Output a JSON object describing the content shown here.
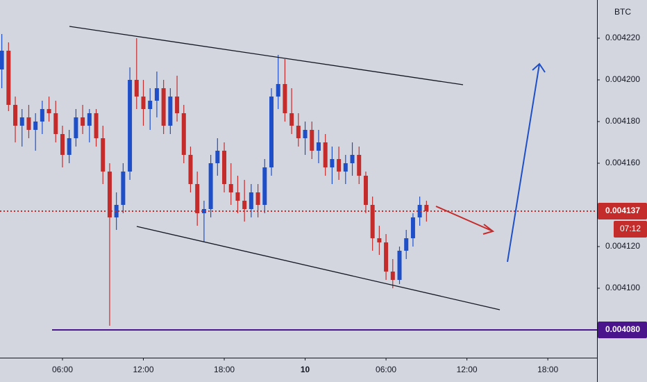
{
  "chart_data": {
    "type": "candlestick",
    "currency": "BTC",
    "up_color": "#1e4fc8",
    "down_color": "#c42b2b",
    "x": [
      1.5,
      2,
      2.5,
      3,
      3.5,
      4,
      4.5,
      5,
      5.5,
      6,
      6.5,
      7,
      7.5,
      8,
      8.5,
      9,
      9.5,
      10,
      10.5,
      11,
      11.5,
      12,
      12.5,
      13,
      13.5,
      14,
      14.5,
      15,
      15.5,
      16,
      16.5,
      17,
      17.5,
      18,
      18.5,
      19,
      19.5,
      20,
      20.5,
      21,
      21.5,
      22,
      22.5,
      23,
      23.5,
      24,
      24.5,
      25,
      25.5,
      26,
      26.5,
      27,
      27.5,
      28,
      28.5,
      29,
      29.5,
      30,
      30.5,
      31,
      31.5,
      32,
      32.5,
      33
    ],
    "open": [
      0.004205,
      0.004214,
      0.004188,
      0.004178,
      0.004182,
      0.004176,
      0.00418,
      0.004186,
      0.004184,
      0.004174,
      0.004164,
      0.004172,
      0.004182,
      0.004178,
      0.004184,
      0.004172,
      0.004156,
      0.004134,
      0.00414,
      0.004156,
      0.0042,
      0.004192,
      0.004186,
      0.00419,
      0.004196,
      0.004178,
      0.004192,
      0.004184,
      0.004164,
      0.00415,
      0.004136,
      0.004138,
      0.00416,
      0.004166,
      0.00415,
      0.004146,
      0.004142,
      0.004138,
      0.004146,
      0.00414,
      0.004158,
      0.004192,
      0.004198,
      0.004184,
      0.004178,
      0.004172,
      0.004176,
      0.004166,
      0.00417,
      0.004158,
      0.004162,
      0.004156,
      0.00416,
      0.004164,
      0.004154,
      0.00414,
      0.004124,
      0.004122,
      0.004108,
      0.004104,
      0.004118,
      0.004124,
      0.004134,
      0.00414
    ],
    "high": [
      0.004222,
      0.004218,
      0.004192,
      0.004186,
      0.004188,
      0.004184,
      0.00419,
      0.004192,
      0.00419,
      0.004178,
      0.004176,
      0.004186,
      0.004188,
      0.004186,
      0.004186,
      0.004178,
      0.00416,
      0.004146,
      0.00416,
      0.004206,
      0.00422,
      0.0042,
      0.004196,
      0.004204,
      0.0042,
      0.004196,
      0.004202,
      0.004188,
      0.004168,
      0.004156,
      0.004142,
      0.004164,
      0.004172,
      0.00417,
      0.00416,
      0.004154,
      0.004152,
      0.00415,
      0.00415,
      0.004162,
      0.004196,
      0.004212,
      0.00421,
      0.004196,
      0.004184,
      0.00418,
      0.00418,
      0.004176,
      0.004174,
      0.004168,
      0.004168,
      0.004164,
      0.00417,
      0.004168,
      0.004156,
      0.004144,
      0.00413,
      0.004126,
      0.004114,
      0.00412,
      0.004128,
      0.004136,
      0.004144,
      0.004142
    ],
    "low": [
      0.004196,
      0.004185,
      0.00417,
      0.004168,
      0.004172,
      0.004166,
      0.004174,
      0.00418,
      0.00417,
      0.004158,
      0.00416,
      0.004168,
      0.004174,
      0.00417,
      0.004168,
      0.00415,
      0.004082,
      0.004128,
      0.004136,
      0.004152,
      0.004186,
      0.004178,
      0.004176,
      0.004182,
      0.004174,
      0.004174,
      0.00418,
      0.00416,
      0.004146,
      0.00413,
      0.004122,
      0.004134,
      0.004154,
      0.004146,
      0.00414,
      0.004136,
      0.004132,
      0.004134,
      0.004134,
      0.004136,
      0.004154,
      0.004186,
      0.00418,
      0.004174,
      0.004168,
      0.004164,
      0.004162,
      0.00416,
      0.004154,
      0.00415,
      0.004152,
      0.00415,
      0.004154,
      0.00415,
      0.004136,
      0.004118,
      0.004116,
      0.004104,
      0.0041,
      0.004102,
      0.004114,
      0.00412,
      0.00413,
      0.004132
    ],
    "close": [
      0.004214,
      0.004188,
      0.004178,
      0.004182,
      0.004176,
      0.00418,
      0.004186,
      0.004184,
      0.004174,
      0.004164,
      0.004172,
      0.004182,
      0.004178,
      0.004184,
      0.004172,
      0.004156,
      0.004134,
      0.00414,
      0.004156,
      0.0042,
      0.004192,
      0.004186,
      0.00419,
      0.004196,
      0.004178,
      0.004192,
      0.004184,
      0.004164,
      0.00415,
      0.004136,
      0.004138,
      0.00416,
      0.004166,
      0.00415,
      0.004146,
      0.004142,
      0.004138,
      0.004146,
      0.00414,
      0.004158,
      0.004192,
      0.004198,
      0.004184,
      0.004178,
      0.004172,
      0.004176,
      0.004166,
      0.00417,
      0.004158,
      0.004162,
      0.004156,
      0.00416,
      0.004164,
      0.004154,
      0.00414,
      0.004124,
      0.004122,
      0.004108,
      0.004104,
      0.004118,
      0.004124,
      0.004134,
      0.00414,
      0.004137
    ],
    "xlim": [
      1.366,
      45.65
    ],
    "ylim": [
      0.00406667,
      0.00423833
    ],
    "xticks": [
      {
        "value": 6,
        "label": "06:00"
      },
      {
        "value": 12,
        "label": "12:00"
      },
      {
        "value": 18,
        "label": "18:00"
      },
      {
        "value": 24,
        "label": "10"
      },
      {
        "value": 30,
        "label": "06:00"
      },
      {
        "value": 36,
        "label": "12:00"
      },
      {
        "value": 42,
        "label": "18:00"
      }
    ],
    "yticks": [
      {
        "value": 0.0041,
        "label": "0.004100"
      },
      {
        "value": 0.00412,
        "label": "0.004120"
      },
      {
        "value": 0.00416,
        "label": "0.004160"
      },
      {
        "value": 0.00418,
        "label": "0.004180"
      },
      {
        "value": 0.0042,
        "label": "0.004200"
      },
      {
        "value": 0.00422,
        "label": "0.004220"
      }
    ],
    "price_lines": [
      {
        "value": 0.004137,
        "label": "0.004137",
        "color": "#c42b2b",
        "dotted": true,
        "countdown": "07:12"
      },
      {
        "value": 0.00408,
        "label": "0.004080",
        "color": "#4a148c",
        "dotted": false
      }
    ]
  }
}
